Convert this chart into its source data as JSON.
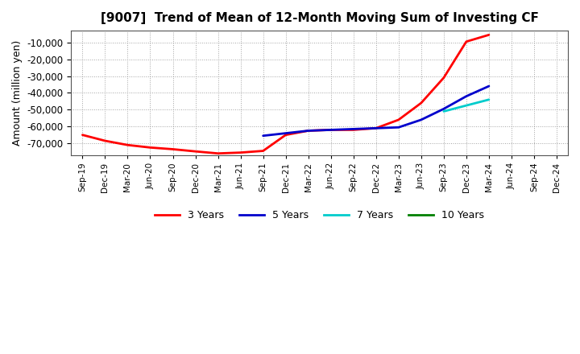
{
  "title": "[9007]  Trend of Mean of 12-Month Moving Sum of Investing CF",
  "ylabel": "Amount (million yen)",
  "background_color": "#ffffff",
  "grid_color": "#999999",
  "ylim": [
    -77000,
    -3000
  ],
  "yticks": [
    -70000,
    -60000,
    -50000,
    -40000,
    -30000,
    -20000,
    -10000
  ],
  "x_labels": [
    "Sep-19",
    "Dec-19",
    "Mar-20",
    "Jun-20",
    "Sep-20",
    "Dec-20",
    "Mar-21",
    "Jun-21",
    "Sep-21",
    "Dec-21",
    "Mar-22",
    "Jun-22",
    "Sep-22",
    "Dec-22",
    "Mar-23",
    "Jun-23",
    "Sep-23",
    "Dec-23",
    "Mar-24",
    "Jun-24",
    "Sep-24",
    "Dec-24"
  ],
  "series": {
    "3yr": {
      "color": "#ff0000",
      "label": "3 Years",
      "x": [
        0,
        1,
        2,
        3,
        4,
        5,
        6,
        7,
        8,
        9,
        10,
        11,
        12,
        13,
        14,
        15,
        16,
        17,
        18
      ],
      "y": [
        -65000,
        -68500,
        -71000,
        -72500,
        -73500,
        -74800,
        -76000,
        -75500,
        -74500,
        -65000,
        -62500,
        -62000,
        -62000,
        -61000,
        -56000,
        -46000,
        -31000,
        -9500,
        -5500
      ]
    },
    "5yr": {
      "color": "#0000cc",
      "label": "5 Years",
      "x": [
        8,
        9,
        10,
        11,
        12,
        13,
        14,
        15,
        16,
        17,
        18
      ],
      "y": [
        -65500,
        -64000,
        -62500,
        -62000,
        -61500,
        -61000,
        -60500,
        -56000,
        -49500,
        -42000,
        -36000
      ]
    },
    "7yr": {
      "color": "#00cccc",
      "label": "7 Years",
      "x": [
        16,
        17,
        18
      ],
      "y": [
        -51000,
        -47500,
        -44000
      ]
    },
    "10yr": {
      "color": "#008000",
      "label": "10 Years",
      "x": [],
      "y": []
    }
  }
}
